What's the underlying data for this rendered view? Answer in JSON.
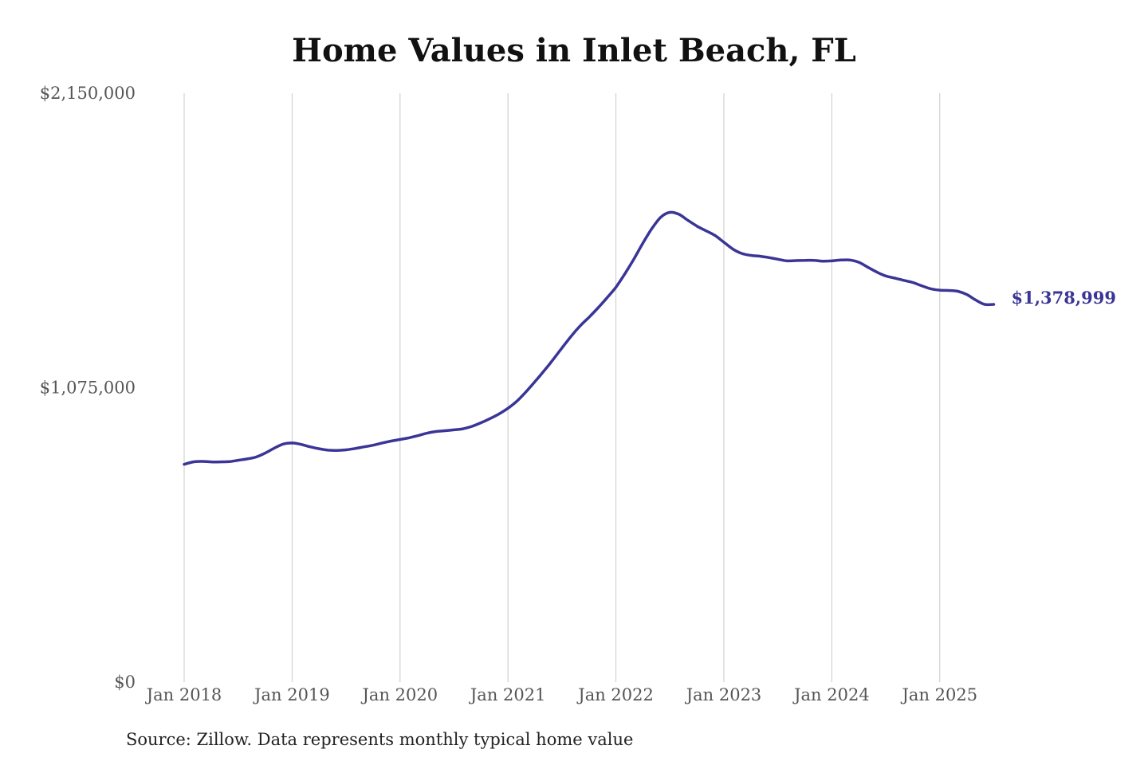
{
  "chart_data": {
    "type": "line",
    "title": "Home Values in Inlet Beach, FL",
    "source": "Source: Zillow. Data represents monthly typical home value",
    "ylim": [
      0,
      2150000
    ],
    "y_ticks": [
      {
        "value": 0,
        "label": "$0"
      },
      {
        "value": 1075000,
        "label": "$1,075,000"
      },
      {
        "value": 2150000,
        "label": "$2,150,000"
      }
    ],
    "x_ticks": [
      "Jan 2018",
      "Jan 2019",
      "Jan 2020",
      "Jan 2021",
      "Jan 2022",
      "Jan 2023",
      "Jan 2024",
      "Jan 2025"
    ],
    "xlim": [
      "2018-01",
      "2025-07"
    ],
    "grid": {
      "vertical": true,
      "horizontal": false
    },
    "line_color": "#3a3596",
    "end_label": "$1,378,999",
    "series": [
      {
        "x": [
          "2018-01",
          "2018-02",
          "2018-03",
          "2018-04",
          "2018-05",
          "2018-06",
          "2018-07",
          "2018-08",
          "2018-09",
          "2018-10",
          "2018-11",
          "2018-12",
          "2019-01",
          "2019-02",
          "2019-03",
          "2019-04",
          "2019-05",
          "2019-06",
          "2019-07",
          "2019-08",
          "2019-09",
          "2019-10",
          "2019-11",
          "2019-12",
          "2020-01",
          "2020-02",
          "2020-03",
          "2020-04",
          "2020-05",
          "2020-06",
          "2020-07",
          "2020-08",
          "2020-09",
          "2020-10",
          "2020-11",
          "2020-12",
          "2021-01",
          "2021-02",
          "2021-03",
          "2021-04",
          "2021-05",
          "2021-06",
          "2021-07",
          "2021-08",
          "2021-09",
          "2021-10",
          "2021-11",
          "2021-12",
          "2022-01",
          "2022-02",
          "2022-03",
          "2022-04",
          "2022-05",
          "2022-06",
          "2022-07",
          "2022-08",
          "2022-09",
          "2022-10",
          "2022-11",
          "2022-12",
          "2023-01",
          "2023-02",
          "2023-03",
          "2023-04",
          "2023-05",
          "2023-06",
          "2023-07",
          "2023-08",
          "2023-09",
          "2023-10",
          "2023-11",
          "2023-12",
          "2024-01",
          "2024-02",
          "2024-03",
          "2024-04",
          "2024-05",
          "2024-06",
          "2024-07",
          "2024-08",
          "2024-09",
          "2024-10",
          "2024-11",
          "2024-12",
          "2025-01",
          "2025-02",
          "2025-03",
          "2025-04",
          "2025-05",
          "2025-06",
          "2025-07"
        ],
        "values": [
          795000,
          804000,
          806000,
          804000,
          804000,
          805000,
          810000,
          815000,
          822000,
          836000,
          854000,
          869000,
          873000,
          868000,
          859000,
          852000,
          847000,
          846000,
          848000,
          853000,
          859000,
          865000,
          873000,
          880000,
          886000,
          892000,
          900000,
          909000,
          915000,
          918000,
          921000,
          925000,
          934000,
          947000,
          962000,
          979000,
          1000000,
          1026000,
          1060000,
          1097000,
          1136000,
          1177000,
          1220000,
          1262000,
          1300000,
          1332000,
          1366000,
          1403000,
          1442000,
          1491000,
          1545000,
          1603000,
          1656000,
          1698000,
          1715000,
          1708000,
          1686000,
          1665000,
          1648000,
          1631000,
          1606000,
          1581000,
          1565000,
          1558000,
          1555000,
          1550000,
          1544000,
          1538000,
          1539000,
          1540000,
          1540000,
          1537000,
          1538000,
          1541000,
          1541000,
          1533000,
          1515000,
          1497000,
          1483000,
          1475000,
          1467000,
          1459000,
          1447000,
          1436000,
          1431000,
          1430000,
          1427000,
          1415000,
          1395000,
          1379000,
          1378999
        ]
      }
    ]
  }
}
